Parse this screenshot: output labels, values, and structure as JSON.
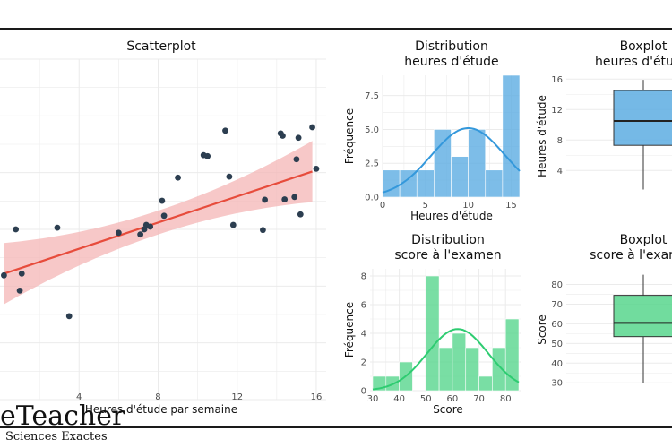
{
  "branding": {
    "logo_text": "eTeacher",
    "logo_subtitle": "Sciences Exactes"
  },
  "chart_data": [
    {
      "type": "scatter",
      "title": "Scatterplot",
      "xlabel": "Heures d'étude par semaine",
      "ylabel": "",
      "xlim": [
        0,
        16.5
      ],
      "x_ticks": [
        4,
        8,
        12,
        16
      ],
      "grid": true,
      "point_color": "#2c3e50",
      "line_color": "#e74c3c",
      "band_color": "#f4b6b6",
      "regression": {
        "x0": 0.2,
        "y0": 0.37,
        "x1": 15.8,
        "y1": 0.67,
        "band_half_width_ends": 0.09,
        "band_half_width_center": 0.035
      },
      "points": [
        {
          "x": 0.2,
          "y": 0.365
        },
        {
          "x": 0.8,
          "y": 0.5
        },
        {
          "x": 1.0,
          "y": 0.32
        },
        {
          "x": 1.1,
          "y": 0.37
        },
        {
          "x": 2.9,
          "y": 0.505
        },
        {
          "x": 3.5,
          "y": 0.245
        },
        {
          "x": 6.0,
          "y": 0.49
        },
        {
          "x": 7.1,
          "y": 0.485
        },
        {
          "x": 7.3,
          "y": 0.5
        },
        {
          "x": 7.4,
          "y": 0.513
        },
        {
          "x": 7.6,
          "y": 0.508
        },
        {
          "x": 8.2,
          "y": 0.584
        },
        {
          "x": 8.3,
          "y": 0.54
        },
        {
          "x": 9.0,
          "y": 0.652
        },
        {
          "x": 10.3,
          "y": 0.718
        },
        {
          "x": 10.5,
          "y": 0.715
        },
        {
          "x": 11.4,
          "y": 0.79
        },
        {
          "x": 11.6,
          "y": 0.655
        },
        {
          "x": 11.8,
          "y": 0.513
        },
        {
          "x": 13.3,
          "y": 0.498
        },
        {
          "x": 13.4,
          "y": 0.587
        },
        {
          "x": 14.2,
          "y": 0.782
        },
        {
          "x": 14.3,
          "y": 0.775
        },
        {
          "x": 14.4,
          "y": 0.588
        },
        {
          "x": 14.9,
          "y": 0.595
        },
        {
          "x": 15.0,
          "y": 0.706
        },
        {
          "x": 15.1,
          "y": 0.769
        },
        {
          "x": 15.2,
          "y": 0.544
        },
        {
          "x": 15.8,
          "y": 0.8
        },
        {
          "x": 16.0,
          "y": 0.678
        }
      ]
    },
    {
      "type": "bar",
      "title_line1": "Distribution",
      "title_line2": "heures d'étude",
      "xlabel": "Heures d'étude",
      "ylabel": "Fréquence",
      "xlim": [
        0,
        16
      ],
      "ylim": [
        0,
        9
      ],
      "x_ticks": [
        0,
        5,
        10,
        15
      ],
      "y_ticks": [
        0.0,
        2.5,
        5.0,
        7.5
      ],
      "y_tick_labels": [
        "0.0",
        "2.5",
        "5.0",
        "7.5"
      ],
      "bar_color": "#5dade2",
      "curve_color": "#3498db",
      "bins": [
        {
          "start": 0,
          "end": 2,
          "value": 2
        },
        {
          "start": 2,
          "end": 4,
          "value": 2
        },
        {
          "start": 4,
          "end": 6,
          "value": 2
        },
        {
          "start": 6,
          "end": 8,
          "value": 5
        },
        {
          "start": 8,
          "end": 10,
          "value": 3
        },
        {
          "start": 10,
          "end": 12,
          "value": 5
        },
        {
          "start": 12,
          "end": 14,
          "value": 2
        },
        {
          "start": 14,
          "end": 16,
          "value": 9
        }
      ],
      "density_curve": {
        "mean": 10,
        "sd": 4.3,
        "peak": 5.1
      }
    },
    {
      "type": "box",
      "title_line1": "Boxplot",
      "title_line2": "heures d'étu",
      "ylabel": "Heures d'étude",
      "ylim": [
        0.5,
        16.5
      ],
      "y_ticks": [
        4,
        8,
        12,
        16
      ],
      "box_color": "#5dade2",
      "whisker_min": 1.5,
      "q1": 7.3,
      "median": 10.5,
      "q3": 14.5,
      "whisker_max": 15.9
    },
    {
      "type": "bar",
      "title_line1": "Distribution",
      "title_line2": "score à l'examen",
      "xlabel": "Score",
      "ylabel": "Fréquence",
      "xlim": [
        29,
        86
      ],
      "ylim": [
        0,
        8.5
      ],
      "x_ticks": [
        30,
        40,
        50,
        60,
        70,
        80
      ],
      "y_ticks": [
        0,
        2,
        4,
        6,
        8
      ],
      "y_tick_labels": [
        "0",
        "2",
        "4",
        "6",
        "8"
      ],
      "bar_color": "#58d68d",
      "curve_color": "#2ecc71",
      "bins": [
        {
          "start": 30,
          "end": 35,
          "value": 1
        },
        {
          "start": 35,
          "end": 40,
          "value": 1
        },
        {
          "start": 40,
          "end": 45,
          "value": 2
        },
        {
          "start": 45,
          "end": 50,
          "value": 0
        },
        {
          "start": 50,
          "end": 55,
          "value": 8
        },
        {
          "start": 55,
          "end": 60,
          "value": 3
        },
        {
          "start": 60,
          "end": 65,
          "value": 4
        },
        {
          "start": 65,
          "end": 70,
          "value": 3
        },
        {
          "start": 70,
          "end": 75,
          "value": 1
        },
        {
          "start": 75,
          "end": 80,
          "value": 3
        },
        {
          "start": 80,
          "end": 85,
          "value": 5
        }
      ],
      "density_curve": {
        "mean": 62,
        "sd": 11.5,
        "peak": 4.3
      }
    },
    {
      "type": "box",
      "title_line1": "Boxplot",
      "title_line2": "score à l'exar",
      "ylabel": "Score",
      "ylim": [
        26,
        88
      ],
      "y_ticks": [
        30,
        40,
        50,
        60,
        70,
        80
      ],
      "box_color": "#58d68d",
      "whisker_min": 30,
      "q1": 53.5,
      "median": 60.5,
      "q3": 74.5,
      "whisker_max": 85
    }
  ]
}
